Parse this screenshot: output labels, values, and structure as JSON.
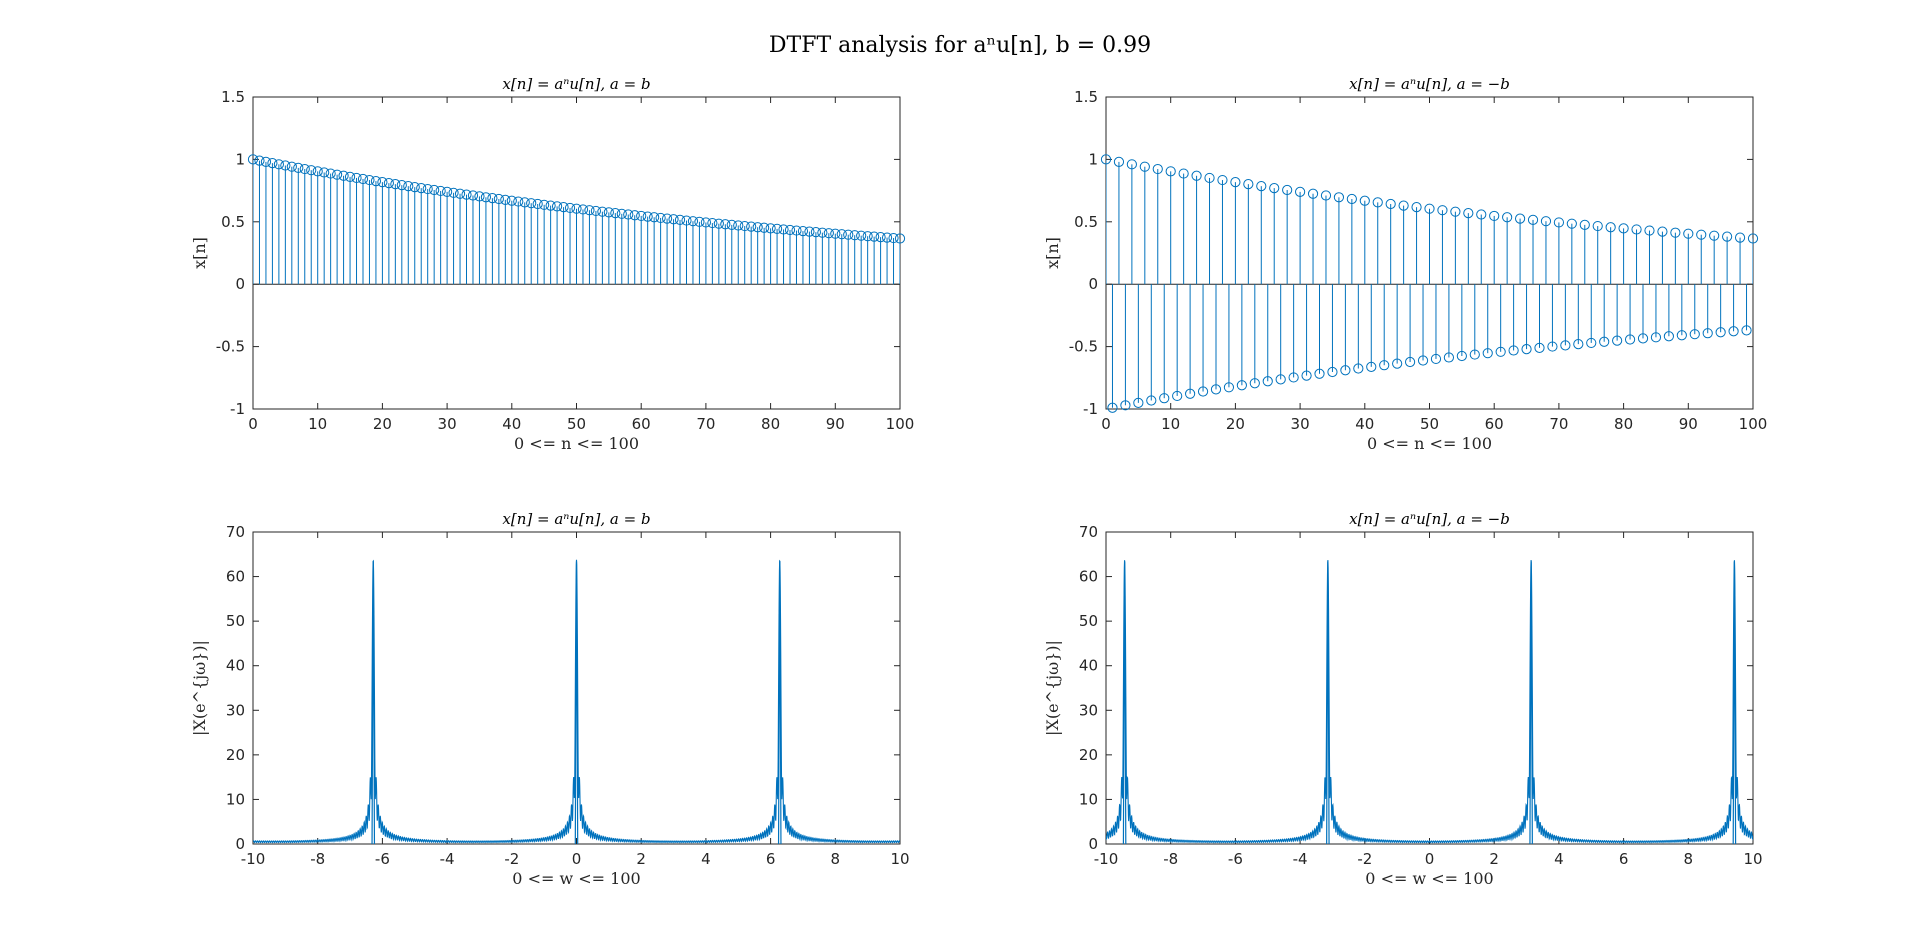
{
  "figure": {
    "title": "DTFT analysis for aⁿu[n], b = 0.99"
  },
  "colors": {
    "series": "#0072BD",
    "axis": "#262626"
  },
  "chart_data": [
    {
      "type": "stem",
      "title": "x[n] = aⁿu[n], a = b",
      "xlabel": "0 <= n <= 100",
      "ylabel": "x[n]",
      "xlim": [
        0,
        100
      ],
      "ylim": [
        -1,
        1.5
      ],
      "xticks": [
        0,
        10,
        20,
        30,
        40,
        50,
        60,
        70,
        80,
        90,
        100
      ],
      "xtick_labels": [
        "0",
        "10",
        "20",
        "30",
        "40",
        "50",
        "60",
        "70",
        "80",
        "90",
        "100"
      ],
      "yticks": [
        -1,
        -0.5,
        0,
        0.5,
        1,
        1.5
      ],
      "ytick_labels": [
        "-1",
        "-0.5",
        "0",
        "0.5",
        "1",
        "1.5"
      ],
      "signal": {
        "base": 0.99,
        "n_start": 0,
        "n_end": 100,
        "n_step": 1
      }
    },
    {
      "type": "stem",
      "title": "x[n] = aⁿu[n], a = −b",
      "xlabel": "0 <= n <= 100",
      "ylabel": "x[n]",
      "xlim": [
        0,
        100
      ],
      "ylim": [
        -1,
        1.5
      ],
      "xticks": [
        0,
        10,
        20,
        30,
        40,
        50,
        60,
        70,
        80,
        90,
        100
      ],
      "xtick_labels": [
        "0",
        "10",
        "20",
        "30",
        "40",
        "50",
        "60",
        "70",
        "80",
        "90",
        "100"
      ],
      "yticks": [
        -1,
        -0.5,
        0,
        0.5,
        1,
        1.5
      ],
      "ytick_labels": [
        "-1",
        "-0.5",
        "0",
        "0.5",
        "1",
        "1.5"
      ],
      "signal": {
        "base": -0.99,
        "n_start": 0,
        "n_end": 100,
        "n_step": 1
      }
    },
    {
      "type": "line",
      "title": "x[n] = aⁿu[n], a = b",
      "xlabel": "0 <= w <= 100",
      "ylabel": "|X(e^{jω})|",
      "xlim": [
        -10,
        10
      ],
      "ylim": [
        0,
        70
      ],
      "xticks": [
        -10,
        -8,
        -6,
        -4,
        -2,
        0,
        2,
        4,
        6,
        8,
        10
      ],
      "xtick_labels": [
        "-10",
        "-8",
        "-6",
        "-4",
        "-2",
        "0",
        "2",
        "4",
        "6",
        "8",
        "10"
      ],
      "yticks": [
        0,
        10,
        20,
        30,
        40,
        50,
        60,
        70
      ],
      "ytick_labels": [
        "0",
        "10",
        "20",
        "30",
        "40",
        "50",
        "60",
        "70"
      ],
      "signal": {
        "base": 0.99,
        "n_start": 0,
        "n_end": 100,
        "samples": 3000
      },
      "peaks": [
        {
          "w": -6.283,
          "mag": 63.4
        },
        {
          "w": 0,
          "mag": 63.4
        },
        {
          "w": 6.283,
          "mag": 63.4
        }
      ]
    },
    {
      "type": "line",
      "title": "x[n] = aⁿu[n], a = −b",
      "xlabel": "0 <= w <= 100",
      "ylabel": "|X(e^{jω})|",
      "xlim": [
        -10,
        10
      ],
      "ylim": [
        0,
        70
      ],
      "xticks": [
        -10,
        -8,
        -6,
        -4,
        -2,
        0,
        2,
        4,
        6,
        8,
        10
      ],
      "xtick_labels": [
        "-10",
        "-8",
        "-6",
        "-4",
        "-2",
        "0",
        "2",
        "4",
        "6",
        "8",
        "10"
      ],
      "yticks": [
        0,
        10,
        20,
        30,
        40,
        50,
        60,
        70
      ],
      "ytick_labels": [
        "0",
        "10",
        "20",
        "30",
        "40",
        "50",
        "60",
        "70"
      ],
      "signal": {
        "base": -0.99,
        "n_start": 0,
        "n_end": 100,
        "samples": 3000
      },
      "peaks": [
        {
          "w": -9.425,
          "mag": 63.4
        },
        {
          "w": -3.142,
          "mag": 63.4
        },
        {
          "w": 3.142,
          "mag": 63.4
        },
        {
          "w": 9.425,
          "mag": 63.4
        }
      ]
    }
  ]
}
